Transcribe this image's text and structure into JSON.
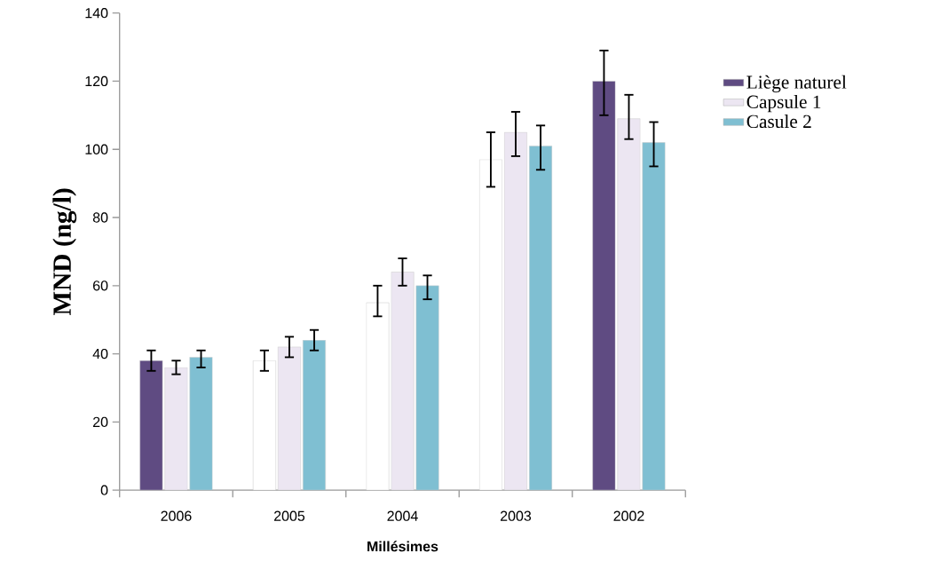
{
  "chart_data": {
    "type": "bar",
    "xlabel": "Millésimes",
    "ylabel": "MND (ng/l)",
    "categories": [
      "2006",
      "2005",
      "2004",
      "2003",
      "2002"
    ],
    "series": [
      {
        "name": "Liège naturel",
        "color": "#5f4b82",
        "colors": [
          "#5f4b82",
          "#ffffff",
          "#ffffff",
          "#ffffff",
          "#5f4b82"
        ],
        "values": [
          38,
          38,
          55,
          97,
          120
        ],
        "errors": [
          [
            35,
            41
          ],
          [
            35,
            41
          ],
          [
            51,
            60
          ],
          [
            89,
            105
          ],
          [
            110,
            129
          ]
        ]
      },
      {
        "name": "Capsule 1",
        "color": "#ece6f2",
        "values": [
          36,
          42,
          64,
          105,
          109
        ],
        "errors": [
          [
            34,
            38
          ],
          [
            39,
            45
          ],
          [
            60,
            68
          ],
          [
            98,
            111
          ],
          [
            103,
            116
          ]
        ]
      },
      {
        "name": "Casule 2",
        "color": "#7fbfd2",
        "values": [
          39,
          44,
          60,
          101,
          102
        ],
        "errors": [
          [
            36,
            41
          ],
          [
            41,
            47
          ],
          [
            56,
            63
          ],
          [
            94,
            107
          ],
          [
            95,
            108
          ]
        ]
      }
    ],
    "ylim": [
      0,
      140
    ],
    "yticks": [
      0,
      20,
      40,
      60,
      80,
      100,
      120,
      140
    ],
    "grid": false,
    "legend": "right"
  }
}
